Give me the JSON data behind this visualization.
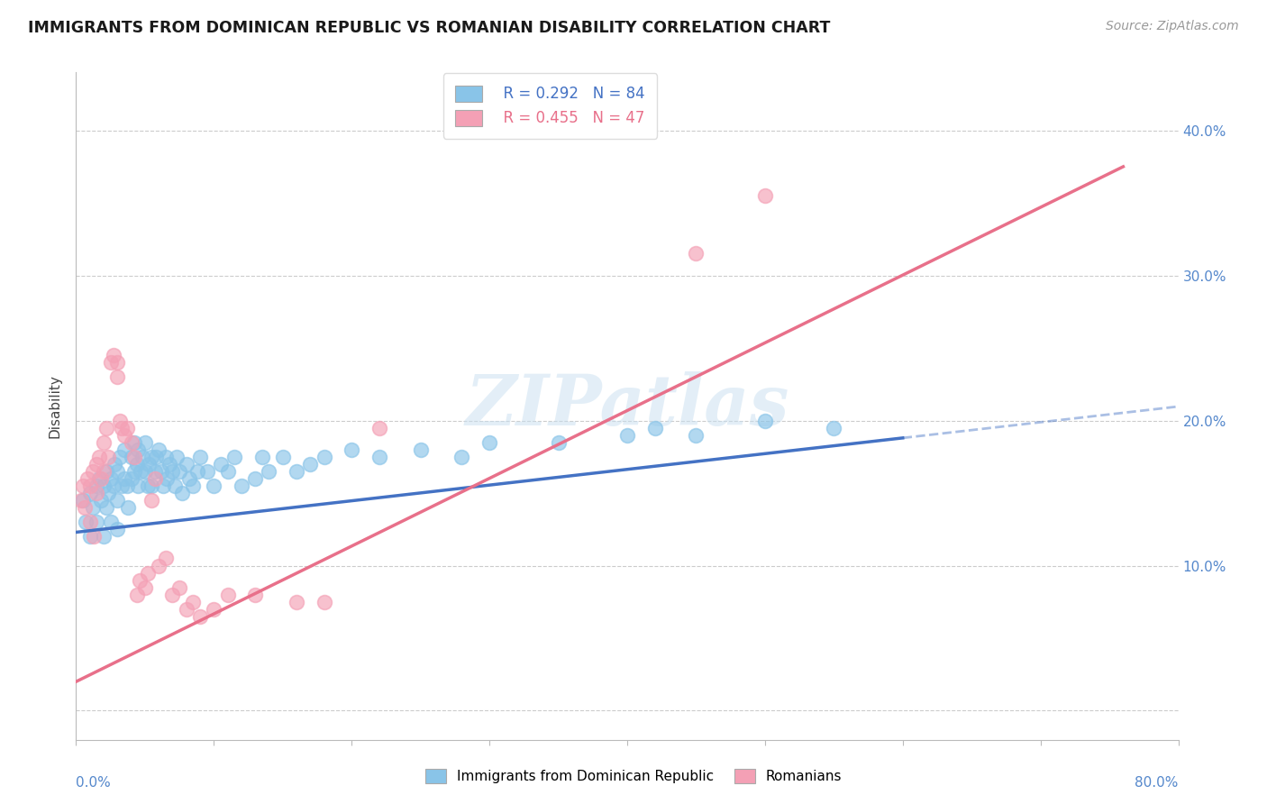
{
  "title": "IMMIGRANTS FROM DOMINICAN REPUBLIC VS ROMANIAN DISABILITY CORRELATION CHART",
  "source": "Source: ZipAtlas.com",
  "ylabel": "Disability",
  "xlim": [
    0.0,
    0.8
  ],
  "ylim": [
    -0.02,
    0.44
  ],
  "yticks": [
    0.0,
    0.1,
    0.2,
    0.3,
    0.4
  ],
  "ytick_labels": [
    "",
    "10.0%",
    "20.0%",
    "30.0%",
    "40.0%"
  ],
  "legend_blue_r": "R = 0.292",
  "legend_blue_n": "N = 84",
  "legend_pink_r": "R = 0.455",
  "legend_pink_n": "N = 47",
  "blue_color": "#89C4E8",
  "pink_color": "#F4A0B5",
  "blue_line_color": "#4472C4",
  "pink_line_color": "#E8708A",
  "watermark": "ZIPatlas",
  "blue_scatter_x": [
    0.005,
    0.007,
    0.01,
    0.01,
    0.012,
    0.015,
    0.015,
    0.017,
    0.018,
    0.02,
    0.02,
    0.022,
    0.022,
    0.023,
    0.025,
    0.025,
    0.027,
    0.028,
    0.03,
    0.03,
    0.03,
    0.032,
    0.033,
    0.035,
    0.035,
    0.037,
    0.038,
    0.04,
    0.04,
    0.042,
    0.042,
    0.044,
    0.045,
    0.045,
    0.047,
    0.048,
    0.05,
    0.05,
    0.052,
    0.053,
    0.055,
    0.055,
    0.057,
    0.058,
    0.06,
    0.062,
    0.063,
    0.065,
    0.066,
    0.068,
    0.07,
    0.072,
    0.073,
    0.075,
    0.077,
    0.08,
    0.082,
    0.085,
    0.088,
    0.09,
    0.095,
    0.1,
    0.105,
    0.11,
    0.115,
    0.12,
    0.13,
    0.135,
    0.14,
    0.15,
    0.16,
    0.17,
    0.18,
    0.2,
    0.22,
    0.25,
    0.28,
    0.3,
    0.35,
    0.4,
    0.42,
    0.45,
    0.5,
    0.55
  ],
  "blue_scatter_y": [
    0.145,
    0.13,
    0.15,
    0.12,
    0.14,
    0.155,
    0.13,
    0.16,
    0.145,
    0.155,
    0.12,
    0.165,
    0.14,
    0.15,
    0.16,
    0.13,
    0.155,
    0.17,
    0.165,
    0.145,
    0.125,
    0.175,
    0.155,
    0.18,
    0.16,
    0.155,
    0.14,
    0.175,
    0.16,
    0.185,
    0.165,
    0.17,
    0.18,
    0.155,
    0.165,
    0.175,
    0.185,
    0.165,
    0.155,
    0.17,
    0.175,
    0.155,
    0.165,
    0.175,
    0.18,
    0.165,
    0.155,
    0.175,
    0.16,
    0.17,
    0.165,
    0.155,
    0.175,
    0.165,
    0.15,
    0.17,
    0.16,
    0.155,
    0.165,
    0.175,
    0.165,
    0.155,
    0.17,
    0.165,
    0.175,
    0.155,
    0.16,
    0.175,
    0.165,
    0.175,
    0.165,
    0.17,
    0.175,
    0.18,
    0.175,
    0.18,
    0.175,
    0.185,
    0.185,
    0.19,
    0.195,
    0.19,
    0.2,
    0.195
  ],
  "pink_scatter_x": [
    0.004,
    0.005,
    0.006,
    0.008,
    0.01,
    0.01,
    0.012,
    0.013,
    0.015,
    0.015,
    0.017,
    0.018,
    0.02,
    0.02,
    0.022,
    0.023,
    0.025,
    0.027,
    0.03,
    0.03,
    0.032,
    0.033,
    0.035,
    0.037,
    0.04,
    0.042,
    0.044,
    0.046,
    0.05,
    0.052,
    0.055,
    0.057,
    0.06,
    0.065,
    0.07,
    0.075,
    0.08,
    0.085,
    0.09,
    0.1,
    0.11,
    0.13,
    0.16,
    0.18,
    0.22,
    0.45,
    0.5
  ],
  "pink_scatter_y": [
    0.145,
    0.155,
    0.14,
    0.16,
    0.155,
    0.13,
    0.165,
    0.12,
    0.17,
    0.15,
    0.175,
    0.16,
    0.185,
    0.165,
    0.195,
    0.175,
    0.24,
    0.245,
    0.23,
    0.24,
    0.2,
    0.195,
    0.19,
    0.195,
    0.185,
    0.175,
    0.08,
    0.09,
    0.085,
    0.095,
    0.145,
    0.16,
    0.1,
    0.105,
    0.08,
    0.085,
    0.07,
    0.075,
    0.065,
    0.07,
    0.08,
    0.08,
    0.075,
    0.075,
    0.195,
    0.315,
    0.355
  ],
  "blue_line_start_x": 0.0,
  "blue_line_end_x": 0.6,
  "blue_line_dash_end_x": 0.8,
  "blue_line_start_y": 0.123,
  "blue_line_end_y": 0.188,
  "pink_line_start_x": 0.0,
  "pink_line_end_x": 0.76,
  "pink_line_start_y": 0.02,
  "pink_line_end_y": 0.375
}
